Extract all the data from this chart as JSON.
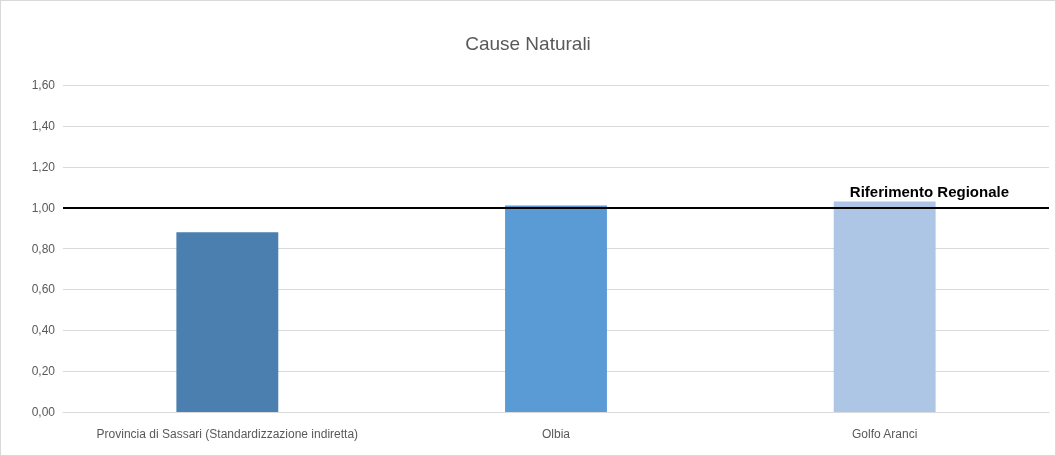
{
  "chart_data": {
    "type": "bar",
    "title": "Cause Naturali",
    "categories": [
      "Provincia di Sassari (Standardizzazione indiretta)",
      "Olbia",
      "Golfo Aranci"
    ],
    "values": [
      0.88,
      1.01,
      1.03
    ],
    "colors": [
      "#4a7fb0",
      "#5b9bd5",
      "#adc6e5"
    ],
    "ylim": [
      0,
      1.6
    ],
    "yticks": [
      {
        "value": 0,
        "label": "0,00"
      },
      {
        "value": 0.2,
        "label": "0,20"
      },
      {
        "value": 0.4,
        "label": "0,40"
      },
      {
        "value": 0.6,
        "label": "0,60"
      },
      {
        "value": 0.8,
        "label": "0,80"
      },
      {
        "value": 1,
        "label": "1,00"
      },
      {
        "value": 1.2,
        "label": "1,20"
      },
      {
        "value": 1.4,
        "label": "1,40"
      },
      {
        "value": 1.6,
        "label": "1,60"
      }
    ],
    "grid": "y",
    "ref_lines": [
      {
        "axis": "y",
        "value": 1,
        "label": "Riferimento Regionale",
        "color": "#000000"
      }
    ]
  }
}
